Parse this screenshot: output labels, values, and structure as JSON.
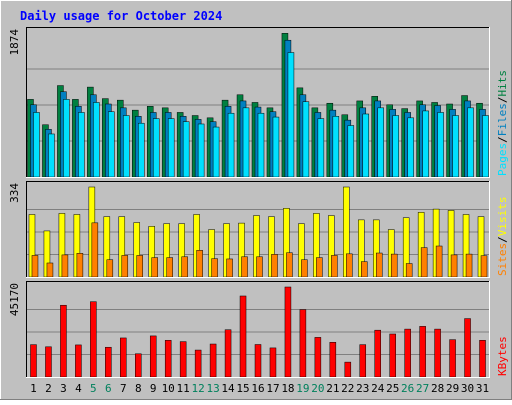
{
  "chart_data": {
    "type": "bar",
    "title": "Daily usage for October 2024",
    "categories": [
      "1",
      "2",
      "3",
      "4",
      "5",
      "6",
      "7",
      "8",
      "9",
      "10",
      "11",
      "12",
      "13",
      "14",
      "15",
      "16",
      "17",
      "18",
      "19",
      "20",
      "21",
      "22",
      "23",
      "24",
      "25",
      "26",
      "27",
      "28",
      "29",
      "30",
      "31"
    ],
    "weekend_days": [
      "5",
      "6",
      "12",
      "13",
      "19",
      "20",
      "26",
      "27"
    ],
    "panels": [
      {
        "id": "hits-files-pages",
        "ylabel_max": "1874",
        "ylim": [
          0,
          1874
        ],
        "axis_title": [
          "Pages",
          "/",
          "Files",
          "/",
          "Hits"
        ],
        "axis_title_colors": [
          "#00e0ff",
          "#000000",
          "#0080c0",
          "#000000",
          "#008040"
        ],
        "series": [
          {
            "name": "Hits",
            "color": "#008040",
            "values": [
              1010,
              680,
              1190,
              1010,
              1170,
              1020,
              1000,
              870,
              920,
              900,
              840,
              800,
              770,
              1000,
              1070,
              970,
              900,
              1870,
              1160,
              900,
              960,
              810,
              990,
              1050,
              940,
              890,
              990,
              970,
              950,
              1060,
              960
            ]
          },
          {
            "name": "Files",
            "color": "#0080c0",
            "values": [
              940,
              620,
              1110,
              920,
              1070,
              950,
              900,
              790,
              840,
              840,
              790,
              750,
              720,
              920,
              990,
              910,
              850,
              1780,
              1070,
              840,
              870,
              740,
              900,
              990,
              880,
              840,
              940,
              930,
              880,
              990,
              880
            ]
          },
          {
            "name": "Pages",
            "color": "#00e0ff",
            "values": [
              840,
              560,
              1010,
              840,
              970,
              850,
              800,
              700,
              760,
              760,
              720,
              690,
              650,
              830,
              900,
              830,
              780,
              1620,
              980,
              760,
              790,
              670,
              820,
              900,
              800,
              770,
              860,
              840,
              800,
              900,
              800
            ]
          }
        ]
      },
      {
        "id": "visits-sites",
        "ylabel_max": "334",
        "ylim": [
          0,
          334
        ],
        "axis_title": [
          "Sites",
          "/",
          "Visits"
        ],
        "axis_title_colors": [
          "#ff8000",
          "#000000",
          "#ffff00"
        ],
        "series": [
          {
            "name": "Visits",
            "color": "#ffff00",
            "values": [
              232,
              171,
              236,
              232,
              334,
              224,
              224,
              202,
              188,
              198,
              198,
              232,
              176,
              198,
              200,
              228,
              224,
              255,
              198,
              236,
              228,
              334,
              212,
              212,
              176,
              220,
              240,
              252,
              247,
              232,
              224
            ]
          },
          {
            "name": "Sites",
            "color": "#ff8000",
            "values": [
              80,
              52,
              82,
              88,
              201,
              64,
              80,
              80,
              72,
              72,
              75,
              99,
              68,
              67,
              75,
              75,
              84,
              90,
              64,
              72,
              80,
              86,
              57,
              89,
              85,
              50,
              109,
              115,
              82,
              85,
              79
            ]
          }
        ]
      },
      {
        "id": "kbytes",
        "ylabel_max": "45170",
        "ylim": [
          0,
          45170
        ],
        "axis_title": [
          "KBytes"
        ],
        "axis_title_colors": [
          "#ff0000"
        ],
        "series": [
          {
            "name": "KBytes",
            "color": "#ff0000",
            "values": [
              16240,
              15150,
              36020,
              16100,
              37790,
              14940,
              19600,
              11650,
              20620,
              18420,
              17760,
              13520,
              16550,
              23730,
              40660,
              16310,
              14600,
              45170,
              33850,
              19880,
              17430,
              7470,
              16240,
              23500,
              21580,
              24040,
              25420,
              24040,
              18750,
              29320,
              18420
            ]
          }
        ]
      }
    ]
  }
}
